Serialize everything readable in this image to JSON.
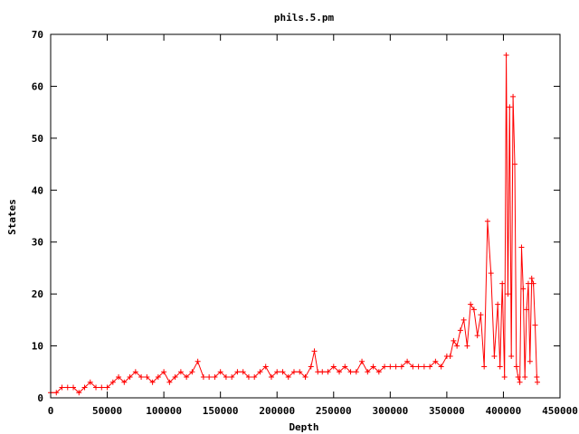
{
  "chart_data": {
    "type": "line",
    "title": "phils.5.pm",
    "xlabel": "Depth",
    "ylabel": "States",
    "xlim": [
      0,
      450000
    ],
    "ylim": [
      0,
      70
    ],
    "xticks": [
      0,
      50000,
      100000,
      150000,
      200000,
      250000,
      300000,
      350000,
      400000,
      450000
    ],
    "yticks": [
      0,
      10,
      20,
      30,
      40,
      50,
      60,
      70
    ],
    "marker": "+",
    "grid": false,
    "series": [
      {
        "color": "#ff0000",
        "x": [
          0,
          5000,
          10000,
          15000,
          20000,
          25000,
          30000,
          35000,
          40000,
          45000,
          50000,
          55000,
          60000,
          65000,
          70000,
          75000,
          80000,
          85000,
          90000,
          95000,
          100000,
          105000,
          110000,
          115000,
          120000,
          125000,
          130000,
          135000,
          140000,
          145000,
          150000,
          155000,
          160000,
          165000,
          170000,
          175000,
          180000,
          185000,
          190000,
          195000,
          200000,
          205000,
          210000,
          215000,
          220000,
          225000,
          230000,
          233000,
          236000,
          240000,
          245000,
          250000,
          255000,
          260000,
          265000,
          270000,
          275000,
          280000,
          285000,
          290000,
          295000,
          300000,
          305000,
          310000,
          315000,
          320000,
          325000,
          330000,
          335000,
          340000,
          345000,
          350000,
          353000,
          356000,
          359000,
          362000,
          365000,
          368000,
          371000,
          374000,
          377000,
          380000,
          383000,
          386000,
          389000,
          392000,
          395000,
          397000,
          399000,
          401000,
          402500,
          404000,
          405500,
          407000,
          408500,
          410000,
          411500,
          413000,
          414500,
          416000,
          417500,
          419000,
          420500,
          422000,
          423500,
          425000,
          426500,
          428000,
          429500,
          430000
        ],
        "y": [
          1,
          1,
          2,
          2,
          2,
          1,
          2,
          3,
          2,
          2,
          2,
          3,
          4,
          3,
          4,
          5,
          4,
          4,
          3,
          4,
          5,
          3,
          4,
          5,
          4,
          5,
          7,
          4,
          4,
          4,
          5,
          4,
          4,
          5,
          5,
          4,
          4,
          5,
          6,
          4,
          5,
          5,
          4,
          5,
          5,
          4,
          6,
          9,
          5,
          5,
          5,
          6,
          5,
          6,
          5,
          5,
          7,
          5,
          6,
          5,
          6,
          6,
          6,
          6,
          7,
          6,
          6,
          6,
          6,
          7,
          6,
          8,
          8,
          11,
          10,
          13,
          15,
          10,
          18,
          17,
          12,
          16,
          6,
          34,
          24,
          8,
          18,
          6,
          22,
          4,
          66,
          20,
          56,
          8,
          58,
          45,
          6,
          4,
          3,
          29,
          21,
          4,
          17,
          22,
          7,
          23,
          22,
          14,
          4,
          3
        ]
      }
    ]
  }
}
